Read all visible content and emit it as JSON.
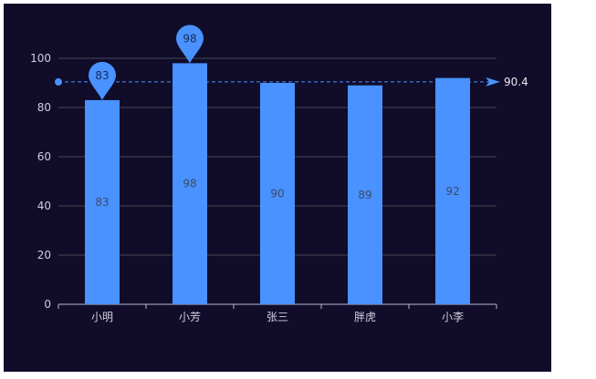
{
  "chart_data": {
    "type": "bar",
    "title": "",
    "xlabel": "",
    "ylabel": "",
    "categories": [
      "小明",
      "小芳",
      "张三",
      "胖虎",
      "小李"
    ],
    "series": [
      {
        "values": [
          83,
          98,
          90,
          89,
          92
        ]
      }
    ],
    "ylim": [
      0,
      100
    ],
    "yticks": [
      0,
      20,
      40,
      60,
      80,
      100
    ],
    "grid": true,
    "mark_points": [
      {
        "category": "小明",
        "value": 83,
        "label": "83"
      },
      {
        "category": "小芳",
        "value": 98,
        "label": "98"
      }
    ],
    "mark_line": {
      "value": 90.4,
      "label": "90.4"
    },
    "colors": {
      "background": "#100c2a",
      "bar": "#4992ff",
      "grid": "#484753",
      "axis": "#b9b8ce"
    }
  }
}
